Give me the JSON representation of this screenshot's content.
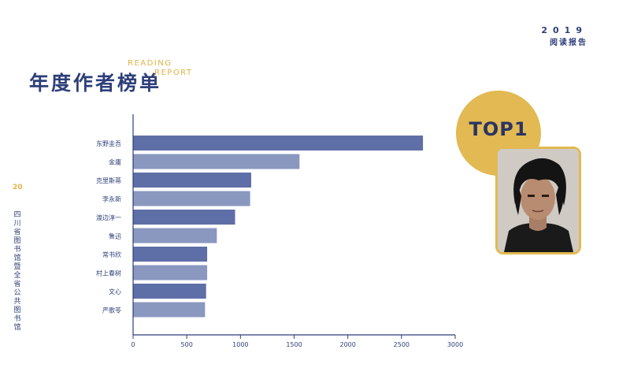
{
  "header": {
    "year": "2019",
    "report": "阅读报告"
  },
  "title": {
    "main": "年度作者榜单",
    "en_line1": "READING",
    "en_line2": "REPORT"
  },
  "sidebar": {
    "page_number": "20",
    "organization": "四川省图书馆暨全省公共图书馆"
  },
  "top_badge": {
    "label": "TOP1"
  },
  "colors": {
    "brand": "#2e3f7a",
    "accent": "#e2b247",
    "bar_dark": "#5e6ea6",
    "bar_light": "#8a97bf"
  },
  "chart_data": {
    "type": "bar",
    "orientation": "horizontal",
    "categories": [
      "东野圭吾",
      "金庸",
      "克里斯蒂",
      "李永新",
      "渡边淳一",
      "鲁迅",
      "常书欣",
      "村上春树",
      "文心",
      "严歌苓"
    ],
    "values": [
      2700,
      1550,
      1100,
      1090,
      950,
      780,
      690,
      690,
      680,
      670
    ],
    "xlim": [
      0,
      3000
    ],
    "xticks": [
      "0",
      "500",
      "1000",
      "1500",
      "2000",
      "2500",
      "3000"
    ],
    "title": "",
    "xlabel": "",
    "ylabel": "",
    "grid": false
  }
}
